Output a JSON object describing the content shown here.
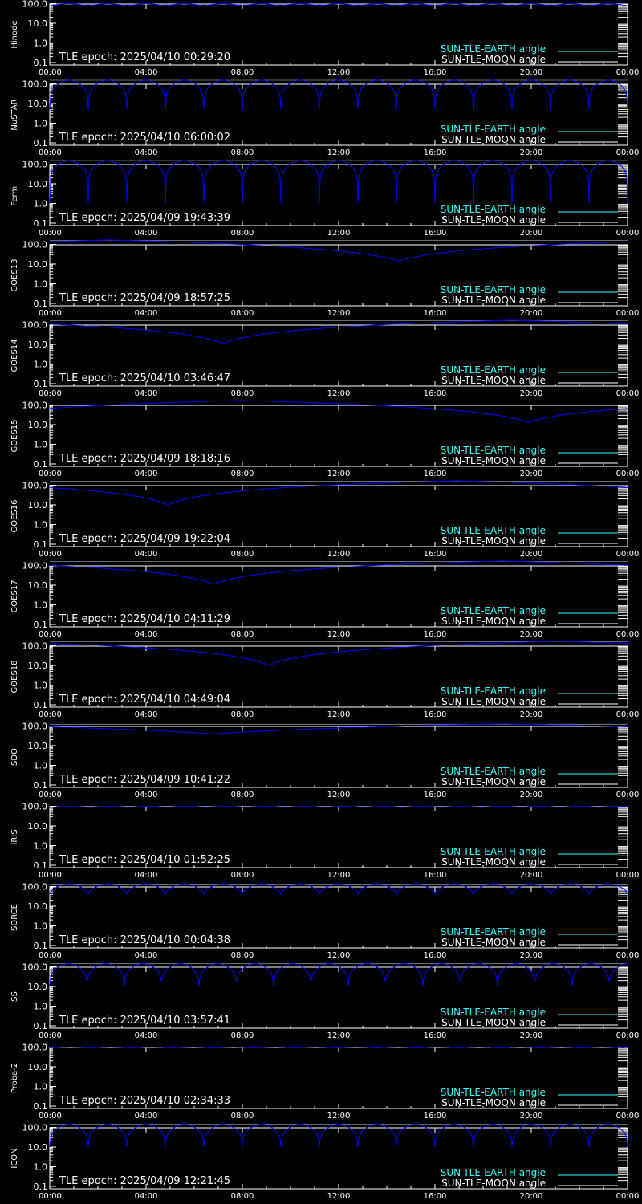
{
  "colors": {
    "background": "#000000",
    "axes": "#ffffff",
    "earth": "#33ffff",
    "moon": "#ffffff",
    "curve": "#0000ff"
  },
  "legend": {
    "earth_label": "SUN-TLE-EARTH angle",
    "moon_label": "SUN-TLE-MOON angle"
  },
  "chart_data": [
    {
      "type": "line",
      "ylabel": "Hinode",
      "epoch": "TLE epoch: 2025/04/10 00:29:20",
      "yscale": "log",
      "ylim": [
        0.1,
        100
      ],
      "yticks": [
        "100.0",
        "10.0",
        "1.0",
        "0.1"
      ],
      "xticks": [
        "00:00",
        "04:00",
        "08:00",
        "12:00",
        "16:00",
        "20:00",
        "00:00"
      ],
      "pattern": "orbit",
      "period_hours": 1.6,
      "min_angle": 75,
      "max_angle": 100
    },
    {
      "type": "line",
      "ylabel": "NuSTAR",
      "epoch": "TLE epoch: 2025/04/10 06:00:02",
      "yscale": "log",
      "ylim": [
        0.1,
        100
      ],
      "yticks": [
        "100.0",
        "10.0",
        "1.0",
        "0.1"
      ],
      "xticks": [
        "00:00",
        "04:00",
        "08:00",
        "12:00",
        "16:00",
        "20:00",
        "00:00"
      ],
      "pattern": "orbit",
      "period_hours": 1.6,
      "min_angle": 5,
      "max_angle": 160
    },
    {
      "type": "line",
      "ylabel": "Fermi",
      "epoch": "TLE epoch: 2025/04/09 19:43:39",
      "yscale": "log",
      "ylim": [
        0.1,
        100
      ],
      "yticks": [
        "100.0",
        "10.0",
        "1.0",
        "0.1"
      ],
      "xticks": [
        "00:00",
        "04:00",
        "08:00",
        "12:00",
        "16:00",
        "20:00",
        "00:00"
      ],
      "pattern": "orbit",
      "period_hours": 1.6,
      "min_angle": 1,
      "max_angle": 160
    },
    {
      "type": "line",
      "ylabel": "GOES13",
      "epoch": "TLE epoch: 2025/04/09 18:57:25",
      "yscale": "log",
      "ylim": [
        0.1,
        100
      ],
      "yticks": [
        "100.0",
        "10.0",
        "1.0",
        "0.1"
      ],
      "xticks": [
        "00:00",
        "04:00",
        "08:00",
        "12:00",
        "16:00",
        "20:00",
        "00:00"
      ],
      "pattern": "geo",
      "min_hour": 14.5,
      "min_angle": 14,
      "max_angle": 170
    },
    {
      "type": "line",
      "ylabel": "GOES14",
      "epoch": "TLE epoch: 2025/04/10 03:46:47",
      "yscale": "log",
      "ylim": [
        0.1,
        100
      ],
      "yticks": [
        "100.0",
        "10.0",
        "1.0",
        "0.1"
      ],
      "xticks": [
        "00:00",
        "04:00",
        "08:00",
        "12:00",
        "16:00",
        "20:00",
        "00:00"
      ],
      "pattern": "geo",
      "min_hour": 7.2,
      "min_angle": 11,
      "max_angle": 170
    },
    {
      "type": "line",
      "ylabel": "GOES15",
      "epoch": "TLE epoch: 2025/04/09 18:18:16",
      "yscale": "log",
      "ylim": [
        0.1,
        100
      ],
      "yticks": [
        "100.0",
        "10.0",
        "1.0",
        "0.1"
      ],
      "xticks": [
        "00:00",
        "04:00",
        "08:00",
        "12:00",
        "16:00",
        "20:00",
        "00:00"
      ],
      "pattern": "geo",
      "min_hour": 19.9,
      "min_angle": 13,
      "max_angle": 170
    },
    {
      "type": "line",
      "ylabel": "GOES16",
      "epoch": "TLE epoch: 2025/04/09 19:22:04",
      "yscale": "log",
      "ylim": [
        0.1,
        100
      ],
      "yticks": [
        "100.0",
        "10.0",
        "1.0",
        "0.1"
      ],
      "xticks": [
        "00:00",
        "04:00",
        "08:00",
        "12:00",
        "16:00",
        "20:00",
        "00:00"
      ],
      "pattern": "geo",
      "min_hour": 4.9,
      "min_angle": 10,
      "max_angle": 170
    },
    {
      "type": "line",
      "ylabel": "GOES17",
      "epoch": "TLE epoch: 2025/04/10 04:11:29",
      "yscale": "log",
      "ylim": [
        0.1,
        100
      ],
      "yticks": [
        "100.0",
        "10.0",
        "1.0",
        "0.1"
      ],
      "xticks": [
        "00:00",
        "04:00",
        "08:00",
        "12:00",
        "16:00",
        "20:00",
        "00:00"
      ],
      "pattern": "geo",
      "min_hour": 6.8,
      "min_angle": 11,
      "max_angle": 170
    },
    {
      "type": "line",
      "ylabel": "GOES18",
      "epoch": "TLE epoch: 2025/04/10 04:49:04",
      "yscale": "log",
      "ylim": [
        0.1,
        100
      ],
      "yticks": [
        "100.0",
        "10.0",
        "1.0",
        "0.1"
      ],
      "xticks": [
        "00:00",
        "04:00",
        "08:00",
        "12:00",
        "16:00",
        "20:00",
        "00:00"
      ],
      "pattern": "geo",
      "min_hour": 9.1,
      "min_angle": 10,
      "max_angle": 170
    },
    {
      "type": "line",
      "ylabel": "SDO",
      "epoch": "TLE epoch: 2025/04/09 10:41:22",
      "yscale": "log",
      "ylim": [
        0.1,
        100
      ],
      "yticks": [
        "100.0",
        "10.0",
        "1.0",
        "0.1"
      ],
      "xticks": [
        "00:00",
        "04:00",
        "08:00",
        "12:00",
        "16:00",
        "20:00",
        "00:00"
      ],
      "pattern": "geo",
      "min_hour": 6.8,
      "min_angle": 40,
      "max_angle": 130
    },
    {
      "type": "line",
      "ylabel": "IRIS",
      "epoch": "TLE epoch: 2025/04/10 01:52:25",
      "yscale": "log",
      "ylim": [
        0.1,
        100
      ],
      "yticks": [
        "100.0",
        "10.0",
        "1.0",
        "0.1"
      ],
      "xticks": [
        "00:00",
        "04:00",
        "08:00",
        "12:00",
        "16:00",
        "20:00",
        "00:00"
      ],
      "pattern": "orbit",
      "period_hours": 1.63,
      "min_angle": 85,
      "max_angle": 100
    },
    {
      "type": "line",
      "ylabel": "SORCE",
      "epoch": "TLE epoch: 2025/04/10 00:04:38",
      "yscale": "log",
      "ylim": [
        0.1,
        100
      ],
      "yticks": [
        "100.0",
        "10.0",
        "1.0",
        "0.1"
      ],
      "xticks": [
        "00:00",
        "04:00",
        "08:00",
        "12:00",
        "16:00",
        "20:00",
        "00:00"
      ],
      "pattern": "orbit",
      "period_hours": 1.6,
      "min_angle": 40,
      "max_angle": 140
    },
    {
      "type": "line",
      "ylabel": "ISS",
      "epoch": "TLE epoch: 2025/04/10 03:57:41",
      "yscale": "log",
      "ylim": [
        0.1,
        100
      ],
      "yticks": [
        "100.0",
        "10.0",
        "1.0",
        "0.1"
      ],
      "xticks": [
        "00:00",
        "04:00",
        "08:00",
        "12:00",
        "16:00",
        "20:00",
        "00:00"
      ],
      "pattern": "orbit",
      "period_hours": 1.55,
      "min_angle": 10,
      "max_angle": 150
    },
    {
      "type": "line",
      "ylabel": "Proba-2",
      "epoch": "TLE epoch: 2025/04/10 02:34:33",
      "yscale": "log",
      "ylim": [
        0.1,
        100
      ],
      "yticks": [
        "100.0",
        "10.0",
        "1.0",
        "0.1"
      ],
      "xticks": [
        "00:00",
        "04:00",
        "08:00",
        "12:00",
        "16:00",
        "20:00",
        "00:00"
      ],
      "pattern": "orbit",
      "period_hours": 1.7,
      "min_angle": 90,
      "max_angle": 100
    },
    {
      "type": "line",
      "ylabel": "ICON",
      "epoch": "TLE epoch: 2025/04/09 12:21:45",
      "yscale": "log",
      "ylim": [
        0.1,
        100
      ],
      "yticks": [
        "100.0",
        "10.0",
        "1.0",
        "0.1"
      ],
      "xticks": [
        "00:00",
        "04:00",
        "08:00",
        "12:00",
        "16:00",
        "20:00",
        "00:00"
      ],
      "pattern": "orbit",
      "period_hours": 1.6,
      "min_angle": 10,
      "max_angle": 150
    }
  ]
}
